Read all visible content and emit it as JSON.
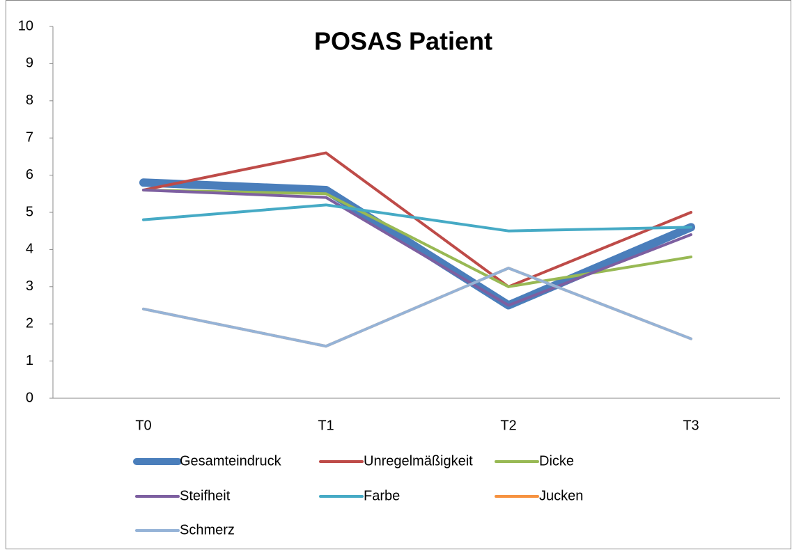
{
  "chart_data": {
    "type": "line",
    "title": "POSAS Patient",
    "categories": [
      "T0",
      "T1",
      "T2",
      "T3"
    ],
    "series": [
      {
        "name": "Gesamteindruck",
        "color": "#4a7ebb",
        "width": 12,
        "values": [
          5.8,
          5.6,
          2.5,
          4.6
        ]
      },
      {
        "name": "Unregelmäßigkeit",
        "color": "#be4b48",
        "width": 4,
        "values": [
          5.6,
          6.6,
          3.0,
          5.0
        ]
      },
      {
        "name": "Dicke",
        "color": "#98b954",
        "width": 4,
        "values": [
          5.6,
          5.5,
          3.0,
          3.8
        ]
      },
      {
        "name": "Steifheit",
        "color": "#7d5fa0",
        "width": 4,
        "values": [
          5.6,
          5.4,
          2.5,
          4.4
        ]
      },
      {
        "name": "Farbe",
        "color": "#46aac5",
        "width": 4,
        "values": [
          4.8,
          5.2,
          4.5,
          4.6
        ]
      },
      {
        "name": "Jucken",
        "color": "#f69240",
        "width": 4,
        "values": [
          2.4,
          1.4,
          3.5,
          1.6
        ]
      },
      {
        "name": "Schmerz",
        "color": "#95b3d7",
        "width": 4,
        "values": [
          2.4,
          1.4,
          3.5,
          1.6
        ]
      }
    ],
    "ylim": [
      0,
      10
    ],
    "yticks": [
      0,
      1,
      2,
      3,
      4,
      5,
      6,
      7,
      8,
      9,
      10
    ]
  }
}
